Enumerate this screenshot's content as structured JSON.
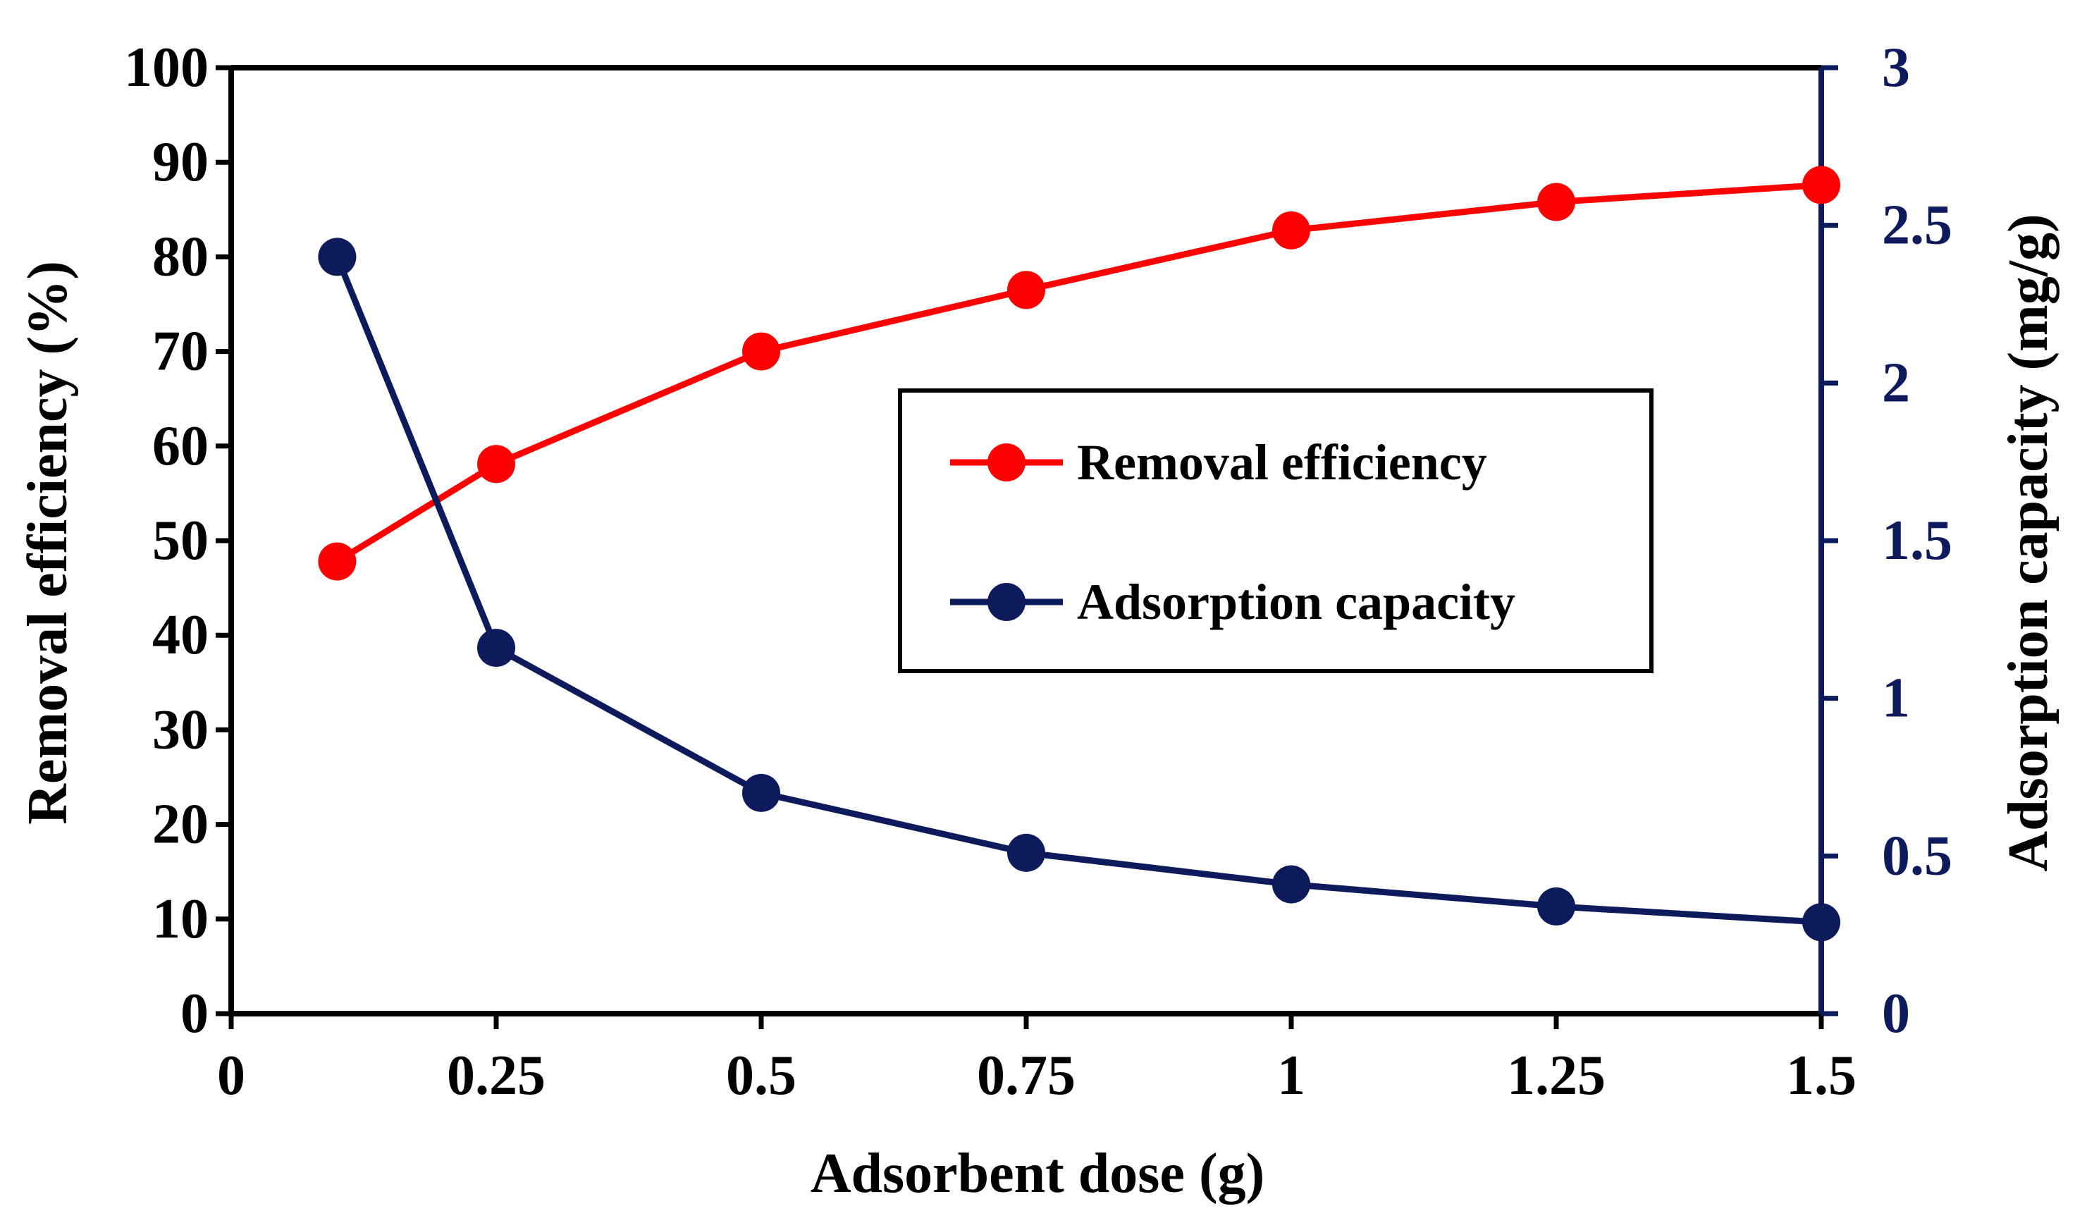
{
  "chart_data": {
    "type": "line",
    "x": [
      0.1,
      0.25,
      0.5,
      0.75,
      1.0,
      1.25,
      1.5
    ],
    "series": [
      {
        "name": "Removal efficiency",
        "axis": "left",
        "color": "#ff0000",
        "values": [
          47.8,
          58.1,
          70.0,
          76.5,
          82.8,
          85.8,
          87.6
        ]
      },
      {
        "name": "Adsorption capacity",
        "axis": "right",
        "color": "#0d1a5c",
        "values": [
          2.4,
          1.16,
          0.7,
          0.51,
          0.41,
          0.34,
          0.29
        ]
      }
    ],
    "xlabel": "Adsorbent dose (g)",
    "ylabel": "Removal efficiency (%)",
    "y2label": "Adsorption capacity (mg/g)",
    "xlim": [
      0,
      1.5
    ],
    "ylim": [
      0,
      100
    ],
    "y2lim": [
      0,
      3
    ],
    "xticks": [
      "0",
      "0.25",
      "0.5",
      "0.75",
      "1",
      "1.25",
      "1.5"
    ],
    "yticks": [
      "0",
      "10",
      "20",
      "30",
      "40",
      "50",
      "60",
      "70",
      "80",
      "90",
      "100"
    ],
    "y2ticks": [
      "0",
      "0.5",
      "1",
      "1.5",
      "2",
      "2.5",
      "3"
    ],
    "grid": false,
    "legend_position": "center-right"
  }
}
